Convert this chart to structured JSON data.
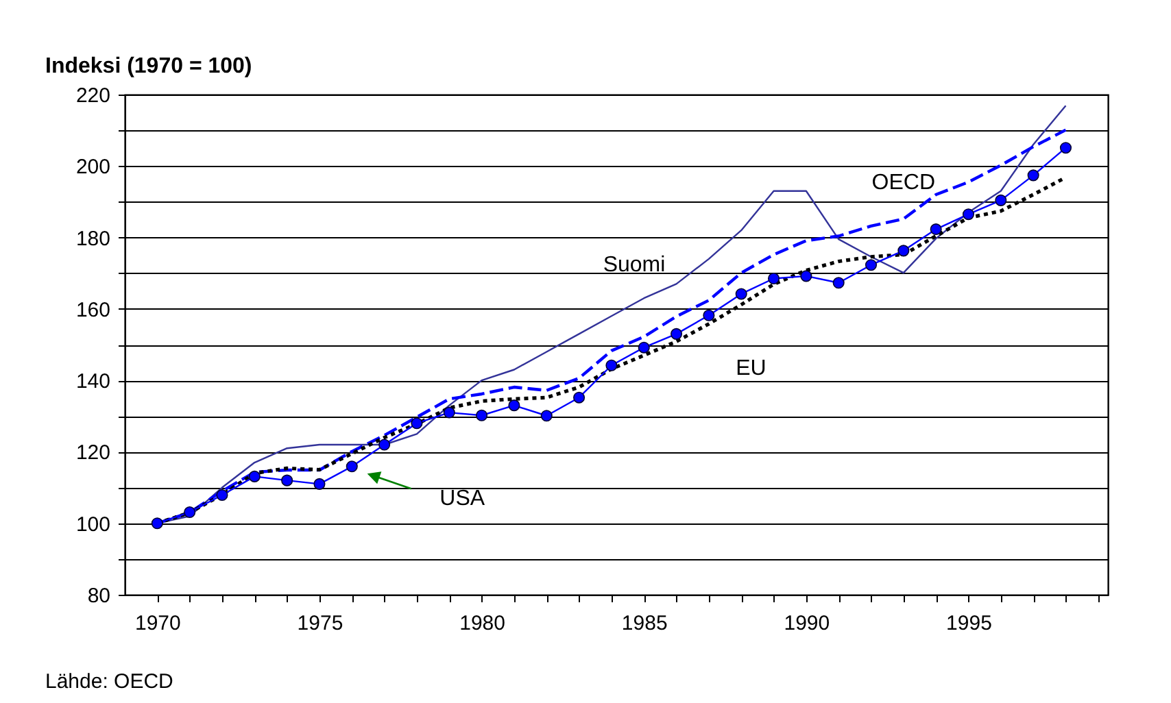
{
  "chart_data": {
    "type": "line",
    "ylabel": "Indeksi (1970 = 100)",
    "x": [
      1970,
      1971,
      1972,
      1973,
      1974,
      1975,
      1976,
      1977,
      1978,
      1979,
      1980,
      1981,
      1982,
      1983,
      1984,
      1985,
      1986,
      1987,
      1988,
      1989,
      1990,
      1991,
      1992,
      1993,
      1994,
      1995,
      1996,
      1997,
      1998
    ],
    "series": [
      {
        "name": "Suomi",
        "color": "#333399",
        "line_style": "solid",
        "marker": "none",
        "values": [
          100,
          102,
          110,
          117,
          121,
          122,
          122,
          122,
          125,
          133,
          140,
          143,
          148,
          153,
          158,
          163,
          167,
          174,
          182,
          193,
          193,
          179.5,
          174.6,
          170.1,
          179.7,
          187,
          193,
          206,
          216.9
        ]
      },
      {
        "name": "OECD",
        "color": "#0000ff",
        "line_style": "dashed",
        "marker": "none",
        "values": [
          100,
          103,
          109,
          114.3,
          114.9,
          114.9,
          120.1,
          124.6,
          129.7,
          134.8,
          136.2,
          138.1,
          137.2,
          140.6,
          148.3,
          152.2,
          157.9,
          162.4,
          170.1,
          175.2,
          179.1,
          180.4,
          183.2,
          185.2,
          192,
          195.5,
          200.2,
          205.4,
          210.1
        ]
      },
      {
        "name": "EU",
        "color": "#000000",
        "line_style": "dotted",
        "marker": "none",
        "values": [
          100,
          103,
          108,
          114,
          115.4,
          115,
          119.5,
          124,
          127.8,
          132.3,
          134.2,
          134.8,
          135.2,
          138.1,
          143.2,
          147,
          150.9,
          155.8,
          161.2,
          166.9,
          170.8,
          173.3,
          174.6,
          175.2,
          180.4,
          185.5,
          187.4,
          192,
          196.8
        ]
      },
      {
        "name": "USA",
        "color": "#0000ff",
        "line_style": "solid",
        "marker": "circle",
        "values": [
          100,
          103.1,
          107.9,
          113.1,
          112,
          111,
          115.9,
          122,
          128,
          131,
          130.2,
          133,
          130.1,
          135.2,
          144.2,
          149.2,
          153,
          158.2,
          164.2,
          168.5,
          169.2,
          167.3,
          172.3,
          176.3,
          182.3,
          186.5,
          190.4,
          197.4,
          205.1
        ]
      }
    ],
    "xlim": [
      1969,
      1999.3
    ],
    "xticks": [
      1970,
      {
        "value": 1971,
        "label": null
      },
      {
        "value": 1972,
        "label": null
      },
      {
        "value": 1973,
        "label": null
      },
      {
        "value": 1974,
        "label": null
      },
      1975,
      {
        "value": 1976,
        "label": null
      },
      {
        "value": 1977,
        "label": null
      },
      {
        "value": 1978,
        "label": null
      },
      {
        "value": 1979,
        "label": null
      },
      1980,
      {
        "value": 1981,
        "label": null
      },
      {
        "value": 1982,
        "label": null
      },
      {
        "value": 1983,
        "label": null
      },
      {
        "value": 1984,
        "label": null
      },
      1985,
      {
        "value": 1986,
        "label": null
      },
      {
        "value": 1987,
        "label": null
      },
      {
        "value": 1988,
        "label": null
      },
      {
        "value": 1989,
        "label": null
      },
      1990,
      {
        "value": 1991,
        "label": null
      },
      {
        "value": 1992,
        "label": null
      },
      {
        "value": 1993,
        "label": null
      },
      {
        "value": 1994,
        "label": null
      },
      1995,
      {
        "value": 1996,
        "label": null
      },
      {
        "value": 1997,
        "label": null
      },
      {
        "value": 1998,
        "label": null
      },
      {
        "value": 1999,
        "label": null
      }
    ],
    "ylim": [
      80,
      220
    ],
    "yticks": [
      80,
      {
        "value": 90,
        "label": null
      },
      100,
      {
        "value": 110,
        "label": null
      },
      120,
      {
        "value": 130,
        "label": null
      },
      140,
      {
        "value": 150,
        "label": null
      },
      160,
      {
        "value": 170,
        "label": null
      },
      180,
      {
        "value": 190,
        "label": null
      },
      200,
      {
        "value": 210,
        "label": null
      },
      220
    ],
    "grid": "y",
    "legend": false,
    "annotations": [
      "Lähde: OECD"
    ]
  }
}
